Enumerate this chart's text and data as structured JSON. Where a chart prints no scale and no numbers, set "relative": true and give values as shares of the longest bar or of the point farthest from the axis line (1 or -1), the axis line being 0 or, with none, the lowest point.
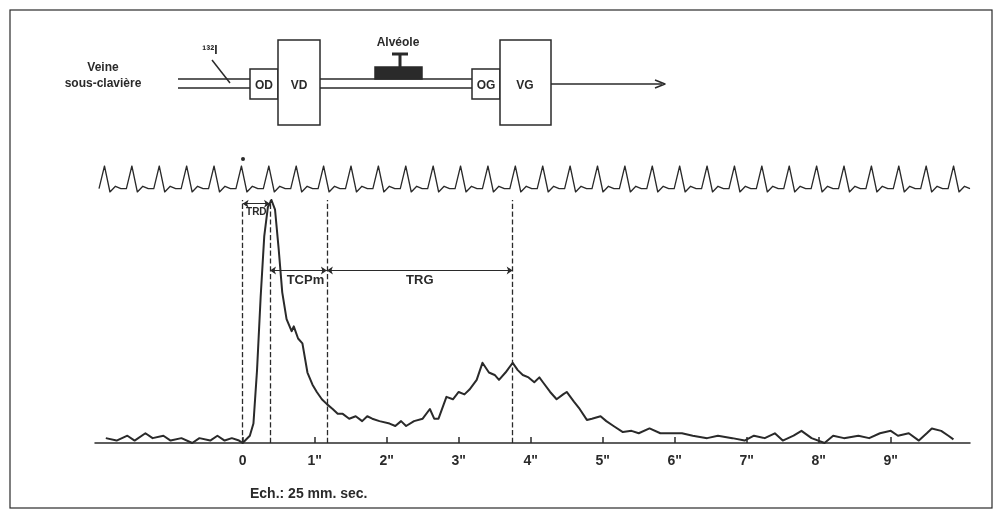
{
  "chart_data": [
    {
      "type": "other",
      "annotations": [
        "Veine sous-clavière",
        "¹³²I",
        "OD",
        "VD",
        "Alvéole",
        "OG",
        "VG"
      ]
    },
    {
      "type": "line",
      "relative": true,
      "tick_labels": false,
      "color": "#2a2a2a",
      "categories": [
        null,
        null,
        null,
        null,
        null,
        null,
        null,
        null,
        null,
        null,
        null,
        null,
        null,
        null,
        null,
        null,
        null,
        null,
        null,
        null,
        null,
        null,
        null,
        null,
        null,
        null,
        null,
        null,
        null,
        null,
        null,
        null,
        null,
        null,
        null,
        null,
        null,
        null,
        null,
        null,
        null,
        null,
        null,
        null,
        null,
        null,
        null,
        null,
        null,
        null,
        null,
        null,
        null,
        null,
        null,
        null,
        null,
        null,
        null,
        null,
        null,
        null,
        null,
        null,
        null,
        null,
        null,
        null,
        null,
        null,
        null,
        null,
        null,
        null,
        null,
        null,
        null,
        null,
        null,
        null,
        null,
        null,
        null,
        null,
        null,
        null,
        null,
        null,
        null,
        null,
        null,
        null,
        null,
        null,
        null,
        null,
        null,
        null,
        null,
        null,
        null,
        null,
        null,
        null,
        null,
        null,
        null,
        null,
        null,
        null,
        null,
        null,
        null,
        null,
        null,
        null,
        null,
        null,
        null,
        null,
        null,
        null,
        null,
        null,
        null,
        null,
        null,
        null,
        null,
        null,
        null,
        null,
        null,
        null,
        null,
        null,
        null,
        null,
        null,
        null,
        null,
        null,
        null,
        null,
        null,
        null,
        null,
        null,
        null,
        null,
        null,
        null,
        null,
        null,
        null,
        null,
        null,
        null,
        null,
        null
      ],
      "values": [
        0.13,
        1,
        0,
        0.22,
        0.13,
        0.13,
        1,
        0,
        0.22,
        0.13,
        0.13,
        1,
        0,
        0.22,
        0.13,
        0.13,
        1,
        0,
        0.22,
        0.13,
        0.13,
        1,
        0,
        0.22,
        0.13,
        0.13,
        1,
        0,
        0.22,
        0.13,
        0.13,
        1,
        0,
        0.22,
        0.13,
        0.13,
        1,
        0,
        0.22,
        0.13,
        0.13,
        1,
        0,
        0.22,
        0.13,
        0.13,
        1,
        0,
        0.22,
        0.13,
        0.13,
        1,
        0,
        0.22,
        0.13,
        0.13,
        1,
        0,
        0.22,
        0.13,
        0.13,
        1,
        0,
        0.22,
        0.13,
        0.13,
        1,
        0,
        0.22,
        0.13,
        0.13,
        1,
        0,
        0.22,
        0.13,
        0.13,
        1,
        0,
        0.22,
        0.13,
        0.13,
        1,
        0,
        0.22,
        0.13,
        0.13,
        1,
        0,
        0.22,
        0.13,
        0.13,
        1,
        0,
        0.22,
        0.13,
        0.13,
        1,
        0,
        0.22,
        0.13,
        0.13,
        1,
        0,
        0.22,
        0.13,
        0.13,
        1,
        0,
        0.22,
        0.13,
        0.13,
        1,
        0,
        0.22,
        0.13,
        0.13,
        1,
        0,
        0.22,
        0.13,
        0.13,
        1,
        0,
        0.22,
        0.13,
        0.13,
        1,
        0,
        0.22,
        0.13,
        0.13,
        1,
        0,
        0.22,
        0.13,
        0.13,
        1,
        0,
        0.22,
        0.13,
        0.13,
        1,
        0,
        0.22,
        0.13,
        0.13,
        1,
        0,
        0.22,
        0.13,
        0.13,
        1,
        0,
        0.22,
        0.13,
        0.13,
        1,
        0,
        0.22,
        0.13
      ]
    },
    {
      "type": "line",
      "relative": true,
      "xlim": [
        -2.05,
        10.1
      ],
      "color": "#2a2a2a",
      "xticks": [
        0,
        {
          "value": 1,
          "label": "1\""
        },
        {
          "value": 2,
          "label": "2\""
        },
        {
          "value": 3,
          "label": "3\""
        },
        {
          "value": 4,
          "label": "4\""
        },
        {
          "value": 5,
          "label": "5\""
        },
        {
          "value": 6,
          "label": "6\""
        },
        {
          "value": 7,
          "label": "7\""
        },
        {
          "value": 8,
          "label": "8\""
        },
        {
          "value": 9,
          "label": "9\""
        }
      ],
      "x": [
        -1.9,
        -1.75,
        -1.6,
        -1.5,
        -1.35,
        -1.25,
        -1.1,
        -1.0,
        -0.85,
        -0.7,
        -0.6,
        -0.45,
        -0.35,
        -0.25,
        -0.15,
        -0.05,
        0,
        0.1,
        0.15,
        0.2,
        0.25,
        0.3,
        0.35,
        0.4,
        0.45,
        0.5,
        0.55,
        0.61,
        0.68,
        0.71,
        0.77,
        0.83,
        0.9,
        0.97,
        1.03,
        1.1,
        1.17,
        1.25,
        1.32,
        1.39,
        1.48,
        1.57,
        1.66,
        1.73,
        1.8,
        1.9,
        2.04,
        2.12,
        2.2,
        2.27,
        2.38,
        2.5,
        2.6,
        2.66,
        2.72,
        2.83,
        2.92,
        3.0,
        3.08,
        3.15,
        3.25,
        3.33,
        3.42,
        3.5,
        3.56,
        3.65,
        3.75,
        3.82,
        3.89,
        3.97,
        4.05,
        4.12,
        4.17,
        4.27,
        4.36,
        4.45,
        4.5,
        4.6,
        4.68,
        4.78,
        4.85,
        4.97,
        5.05,
        5.15,
        5.28,
        5.4,
        5.5,
        5.65,
        5.8,
        5.97,
        6.1,
        6.25,
        6.45,
        6.6,
        6.8,
        6.97,
        7.1,
        7.25,
        7.39,
        7.5,
        7.65,
        7.76,
        7.9,
        8.08,
        8.2,
        8.35,
        8.55,
        8.7,
        8.85,
        9.0,
        9.1,
        9.25,
        9.39,
        9.5,
        9.57,
        9.7,
        9.8,
        9.87
      ],
      "values": [
        0.02,
        0.01,
        0.03,
        0.01,
        0.04,
        0.02,
        0.03,
        0.01,
        0.02,
        0,
        0.02,
        0.01,
        0.03,
        0.01,
        0.02,
        0.01,
        0,
        0.03,
        0.08,
        0.3,
        0.6,
        0.85,
        0.97,
        1,
        0.96,
        0.8,
        0.62,
        0.51,
        0.46,
        0.48,
        0.43,
        0.41,
        0.29,
        0.24,
        0.21,
        0.18,
        0.16,
        0.14,
        0.12,
        0.12,
        0.1,
        0.11,
        0.09,
        0.11,
        0.1,
        0.09,
        0.08,
        0.07,
        0.09,
        0.07,
        0.09,
        0.1,
        0.14,
        0.1,
        0.1,
        0.19,
        0.18,
        0.21,
        0.2,
        0.22,
        0.26,
        0.33,
        0.29,
        0.28,
        0.26,
        0.29,
        0.33,
        0.3,
        0.28,
        0.27,
        0.25,
        0.27,
        0.25,
        0.21,
        0.18,
        0.2,
        0.21,
        0.17,
        0.14,
        0.095,
        0.1,
        0.11,
        0.09,
        0.07,
        0.045,
        0.05,
        0.04,
        0.06,
        0.04,
        0.04,
        0.04,
        0.03,
        0.02,
        0.03,
        0.02,
        0.01,
        0.03,
        0.02,
        0.04,
        0.01,
        0.03,
        0.05,
        0.02,
        0,
        0.03,
        0.02,
        0.03,
        0.02,
        0.04,
        0.05,
        0.03,
        0.04,
        0.01,
        0.04,
        0.06,
        0.05,
        0.03,
        0.015
      ],
      "ref_lines": [
        {
          "axis": "x",
          "value": 0,
          "color": "#2a2a2a",
          "line_style": "dashed"
        },
        {
          "axis": "x",
          "value": 0.38,
          "color": "#2a2a2a",
          "line_style": "dashed"
        },
        {
          "axis": "x",
          "value": 1.17,
          "color": "#2a2a2a",
          "line_style": "dashed"
        },
        {
          "axis": "x",
          "value": 3.75,
          "color": "#2a2a2a",
          "line_style": "dashed"
        }
      ],
      "annotations": [
        "TRD",
        "TCPm",
        "TRG",
        "Ech.: 25 mm. sec."
      ]
    }
  ]
}
